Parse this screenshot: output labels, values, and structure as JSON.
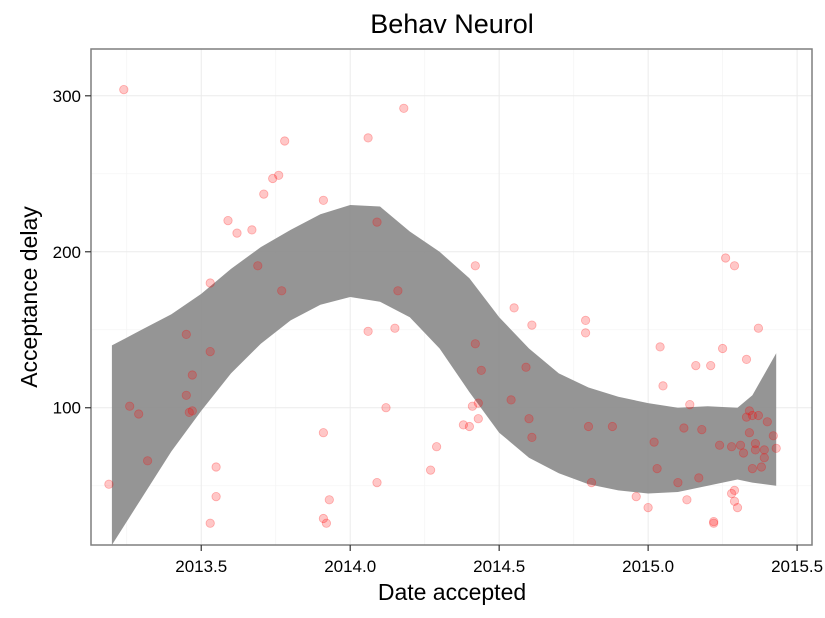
{
  "chart_data": {
    "type": "scatter",
    "title": "Behav Neurol",
    "xlabel": "Date accepted",
    "ylabel": "Acceptance delay",
    "xlim": [
      2013.13,
      2015.55
    ],
    "ylim": [
      12,
      330
    ],
    "x_ticks": [
      2013.5,
      2014.0,
      2014.5,
      2015.0,
      2015.5
    ],
    "x_tick_labels": [
      "2013.5",
      "2014.0",
      "2014.5",
      "2015.0",
      "2015.5"
    ],
    "y_ticks": [
      100,
      200,
      300
    ],
    "y_tick_labels": [
      "100",
      "200",
      "300"
    ],
    "grid": true,
    "legend": "none",
    "colors": {
      "points": "#ff0000",
      "band": "#8c8c8c",
      "panel_border": "#7f7f7f",
      "grid": "#ebebeb"
    },
    "band": {
      "x": [
        2013.2,
        2013.3,
        2013.4,
        2013.5,
        2013.6,
        2013.7,
        2013.8,
        2013.9,
        2014.0,
        2014.1,
        2014.2,
        2014.3,
        2014.4,
        2014.5,
        2014.6,
        2014.7,
        2014.8,
        2014.9,
        2015.0,
        2015.1,
        2015.2,
        2015.3,
        2015.35,
        2015.43
      ],
      "lower": [
        10,
        42,
        72,
        98,
        122,
        141,
        156,
        166,
        171,
        168,
        158,
        138,
        110,
        84,
        68,
        58,
        51,
        47,
        45,
        46,
        50,
        54,
        52,
        50
      ],
      "upper": [
        140,
        150,
        160,
        173,
        189,
        203,
        214,
        224,
        230,
        229,
        213,
        200,
        183,
        158,
        138,
        122,
        113,
        107,
        103,
        100,
        101,
        100,
        108,
        135
      ]
    },
    "points": [
      {
        "x": 2013.19,
        "y": 51
      },
      {
        "x": 2013.24,
        "y": 304
      },
      {
        "x": 2013.26,
        "y": 101
      },
      {
        "x": 2013.29,
        "y": 96
      },
      {
        "x": 2013.32,
        "y": 66
      },
      {
        "x": 2013.45,
        "y": 147
      },
      {
        "x": 2013.45,
        "y": 108
      },
      {
        "x": 2013.46,
        "y": 97
      },
      {
        "x": 2013.47,
        "y": 98
      },
      {
        "x": 2013.47,
        "y": 121
      },
      {
        "x": 2013.53,
        "y": 180
      },
      {
        "x": 2013.53,
        "y": 136
      },
      {
        "x": 2013.53,
        "y": 26
      },
      {
        "x": 2013.55,
        "y": 62
      },
      {
        "x": 2013.55,
        "y": 43
      },
      {
        "x": 2013.59,
        "y": 220
      },
      {
        "x": 2013.62,
        "y": 212
      },
      {
        "x": 2013.67,
        "y": 214
      },
      {
        "x": 2013.69,
        "y": 191
      },
      {
        "x": 2013.71,
        "y": 237
      },
      {
        "x": 2013.74,
        "y": 247
      },
      {
        "x": 2013.76,
        "y": 249
      },
      {
        "x": 2013.77,
        "y": 175
      },
      {
        "x": 2013.78,
        "y": 271
      },
      {
        "x": 2013.91,
        "y": 233
      },
      {
        "x": 2013.91,
        "y": 84
      },
      {
        "x": 2013.91,
        "y": 29
      },
      {
        "x": 2013.92,
        "y": 26
      },
      {
        "x": 2013.93,
        "y": 41
      },
      {
        "x": 2014.06,
        "y": 273
      },
      {
        "x": 2014.06,
        "y": 149
      },
      {
        "x": 2014.09,
        "y": 219
      },
      {
        "x": 2014.09,
        "y": 52
      },
      {
        "x": 2014.12,
        "y": 100
      },
      {
        "x": 2014.15,
        "y": 151
      },
      {
        "x": 2014.16,
        "y": 175
      },
      {
        "x": 2014.18,
        "y": 292
      },
      {
        "x": 2014.27,
        "y": 60
      },
      {
        "x": 2014.29,
        "y": 75
      },
      {
        "x": 2014.38,
        "y": 89
      },
      {
        "x": 2014.4,
        "y": 88
      },
      {
        "x": 2014.41,
        "y": 101
      },
      {
        "x": 2014.42,
        "y": 191
      },
      {
        "x": 2014.42,
        "y": 141
      },
      {
        "x": 2014.43,
        "y": 103
      },
      {
        "x": 2014.43,
        "y": 93
      },
      {
        "x": 2014.44,
        "y": 124
      },
      {
        "x": 2014.54,
        "y": 105
      },
      {
        "x": 2014.55,
        "y": 164
      },
      {
        "x": 2014.59,
        "y": 126
      },
      {
        "x": 2014.6,
        "y": 93
      },
      {
        "x": 2014.61,
        "y": 153
      },
      {
        "x": 2014.61,
        "y": 81
      },
      {
        "x": 2014.79,
        "y": 156
      },
      {
        "x": 2014.79,
        "y": 148
      },
      {
        "x": 2014.8,
        "y": 88
      },
      {
        "x": 2014.81,
        "y": 52
      },
      {
        "x": 2014.88,
        "y": 88
      },
      {
        "x": 2014.96,
        "y": 43
      },
      {
        "x": 2015.0,
        "y": 36
      },
      {
        "x": 2015.02,
        "y": 78
      },
      {
        "x": 2015.03,
        "y": 61
      },
      {
        "x": 2015.04,
        "y": 139
      },
      {
        "x": 2015.05,
        "y": 114
      },
      {
        "x": 2015.1,
        "y": 52
      },
      {
        "x": 2015.12,
        "y": 87
      },
      {
        "x": 2015.13,
        "y": 41
      },
      {
        "x": 2015.14,
        "y": 102
      },
      {
        "x": 2015.16,
        "y": 127
      },
      {
        "x": 2015.17,
        "y": 55
      },
      {
        "x": 2015.18,
        "y": 86
      },
      {
        "x": 2015.21,
        "y": 127
      },
      {
        "x": 2015.22,
        "y": 26
      },
      {
        "x": 2015.22,
        "y": 27
      },
      {
        "x": 2015.24,
        "y": 76
      },
      {
        "x": 2015.25,
        "y": 138
      },
      {
        "x": 2015.26,
        "y": 196
      },
      {
        "x": 2015.28,
        "y": 75
      },
      {
        "x": 2015.28,
        "y": 45
      },
      {
        "x": 2015.29,
        "y": 47
      },
      {
        "x": 2015.29,
        "y": 191
      },
      {
        "x": 2015.29,
        "y": 40
      },
      {
        "x": 2015.3,
        "y": 36
      },
      {
        "x": 2015.31,
        "y": 76
      },
      {
        "x": 2015.32,
        "y": 71
      },
      {
        "x": 2015.33,
        "y": 94
      },
      {
        "x": 2015.33,
        "y": 131
      },
      {
        "x": 2015.34,
        "y": 98
      },
      {
        "x": 2015.34,
        "y": 84
      },
      {
        "x": 2015.35,
        "y": 95
      },
      {
        "x": 2015.35,
        "y": 61
      },
      {
        "x": 2015.36,
        "y": 77
      },
      {
        "x": 2015.36,
        "y": 73
      },
      {
        "x": 2015.37,
        "y": 151
      },
      {
        "x": 2015.37,
        "y": 95
      },
      {
        "x": 2015.38,
        "y": 62
      },
      {
        "x": 2015.39,
        "y": 73
      },
      {
        "x": 2015.39,
        "y": 68
      },
      {
        "x": 2015.4,
        "y": 91
      },
      {
        "x": 2015.42,
        "y": 82
      },
      {
        "x": 2015.43,
        "y": 74
      }
    ]
  }
}
